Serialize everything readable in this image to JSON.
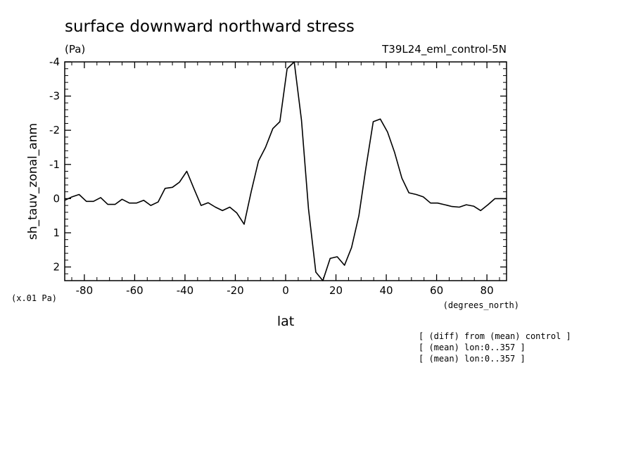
{
  "chart_data": {
    "type": "line",
    "title": "surface downward northward stress",
    "units": "(Pa)",
    "run_label": "T39L24_eml_control-5N",
    "ylabel": "sh_tauv_zonal_anm",
    "y_scale_note": "(x.01 Pa)",
    "xlabel": "lat",
    "x_units": "(degrees_north)",
    "xlim": [
      -87.8,
      87.8
    ],
    "ylim": [
      2.4,
      -4
    ],
    "x_ticks": [
      -80,
      -60,
      -40,
      -20,
      0,
      20,
      40,
      60,
      80
    ],
    "x_tick_labels": [
      "-80",
      "-60",
      "-40",
      "-20",
      "0",
      "20",
      "40",
      "60",
      "80"
    ],
    "y_ticks": [
      -4,
      -3,
      -2,
      -1,
      0,
      1,
      2
    ],
    "y_tick_labels": [
      "-4",
      "-3",
      "-2",
      "-1",
      "0",
      "1",
      "2"
    ],
    "notes": [
      "[ (diff) from (mean) control ]",
      "[ (mean) lon:0..357 ]",
      "[ (mean) lon:0..357 ]"
    ],
    "series": [
      {
        "x": [
          -87.8,
          -84.9,
          -82.1,
          -79.2,
          -76.4,
          -73.5,
          -70.7,
          -67.8,
          -65.0,
          -62.1,
          -59.3,
          -56.4,
          -53.6,
          -50.7,
          -47.9,
          -45.0,
          -42.2,
          -39.3,
          -36.5,
          -33.6,
          -30.8,
          -27.9,
          -25.1,
          -22.2,
          -19.4,
          -16.5,
          -13.7,
          -10.8,
          -8.0,
          -5.1,
          -2.3,
          0.6,
          3.4,
          6.3,
          9.1,
          12.0,
          14.8,
          17.7,
          20.5,
          23.4,
          26.2,
          29.1,
          31.9,
          34.8,
          37.6,
          40.5,
          43.3,
          46.2,
          49.0,
          51.9,
          54.7,
          57.6,
          60.4,
          63.3,
          66.1,
          69.0,
          71.8,
          74.7,
          77.5,
          80.4,
          83.2,
          86.1,
          87.8
        ],
        "y": [
          0.05,
          -0.05,
          -0.12,
          0.08,
          0.08,
          -0.03,
          0.17,
          0.17,
          0.02,
          0.13,
          0.13,
          0.05,
          0.2,
          0.1,
          -0.3,
          -0.33,
          -0.48,
          -0.8,
          -0.3,
          0.2,
          0.12,
          0.25,
          0.35,
          0.25,
          0.42,
          0.75,
          -0.2,
          -1.1,
          -1.5,
          -2.05,
          -2.25,
          -3.8,
          -4.05,
          -2.3,
          0.3,
          2.15,
          2.4,
          1.75,
          1.7,
          1.95,
          1.43,
          0.5,
          -0.9,
          -2.25,
          -2.33,
          -1.95,
          -1.35,
          -0.6,
          -0.17,
          -0.12,
          -0.05,
          0.13,
          0.13,
          0.18,
          0.23,
          0.25,
          0.18,
          0.22,
          0.35,
          0.18,
          0.0,
          0.0,
          0.0
        ]
      }
    ]
  }
}
